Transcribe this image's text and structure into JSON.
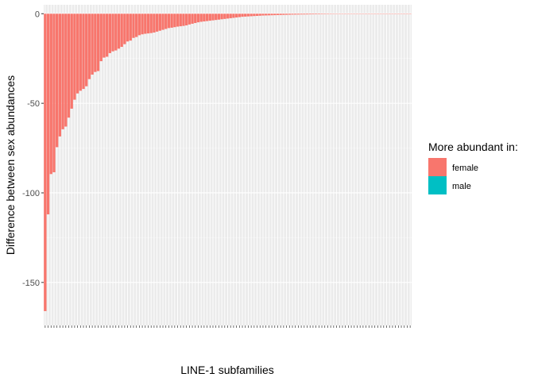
{
  "chart_data": {
    "type": "bar",
    "xlabel": "LINE-1 subfamilies",
    "ylabel": "Difference between sex abundances",
    "ylim": [
      -174,
      5
    ],
    "yticks": [
      0,
      -50,
      -100,
      -150
    ],
    "grid": true,
    "legend": {
      "title": "More abundant in:",
      "position": "right",
      "entries": [
        {
          "label": "female",
          "color": "#F8766D"
        },
        {
          "label": "male",
          "color": "#00BFC4"
        }
      ]
    },
    "series": [
      {
        "name": "female",
        "color": "#F8766D",
        "values": [
          -166,
          -112,
          -89.5,
          -88.5,
          -74.5,
          -68.5,
          -64.5,
          -63,
          -58,
          -53,
          -48,
          -44.5,
          -43,
          -42,
          -40.5,
          -36.5,
          -34,
          -32.5,
          -32,
          -26.5,
          -24.5,
          -24,
          -22,
          -21,
          -20.5,
          -19.5,
          -18.5,
          -17,
          -15.5,
          -15,
          -13.5,
          -13,
          -12,
          -11.5,
          -11.2,
          -11,
          -10.8,
          -10.5,
          -10,
          -9.5,
          -9,
          -8.5,
          -8,
          -7.8,
          -7.5,
          -7.2,
          -7,
          -6.8,
          -6.5,
          -6,
          -5.6,
          -5.2,
          -4.8,
          -4.5,
          -4.3,
          -4.1,
          -3.9,
          -3.7,
          -3.5,
          -3.3,
          -3.1,
          -2.9,
          -2.7,
          -2.5,
          -2.3,
          -2.1,
          -1.9,
          -1.7,
          -1.6,
          -1.5,
          -1.4,
          -1.3,
          -1.2,
          -1.1,
          -1.0,
          -0.95,
          -0.9,
          -0.85,
          -0.8,
          -0.75,
          -0.7,
          -0.65,
          -0.6,
          -0.55,
          -0.5,
          -0.48,
          -0.45,
          -0.42,
          -0.4,
          -0.38,
          -0.35,
          -0.33,
          -0.3,
          -0.28,
          -0.26,
          -0.24,
          -0.22,
          -0.2,
          -0.19,
          -0.18,
          -0.17,
          -0.16,
          -0.15,
          -0.14,
          -0.13,
          -0.12,
          -0.11,
          -0.1,
          -0.09,
          -0.08,
          -0.07,
          -0.06,
          -0.05,
          -0.04,
          -0.03,
          -0.02,
          -0.01,
          0,
          0,
          0,
          0,
          0,
          0,
          0,
          0
        ]
      }
    ]
  }
}
